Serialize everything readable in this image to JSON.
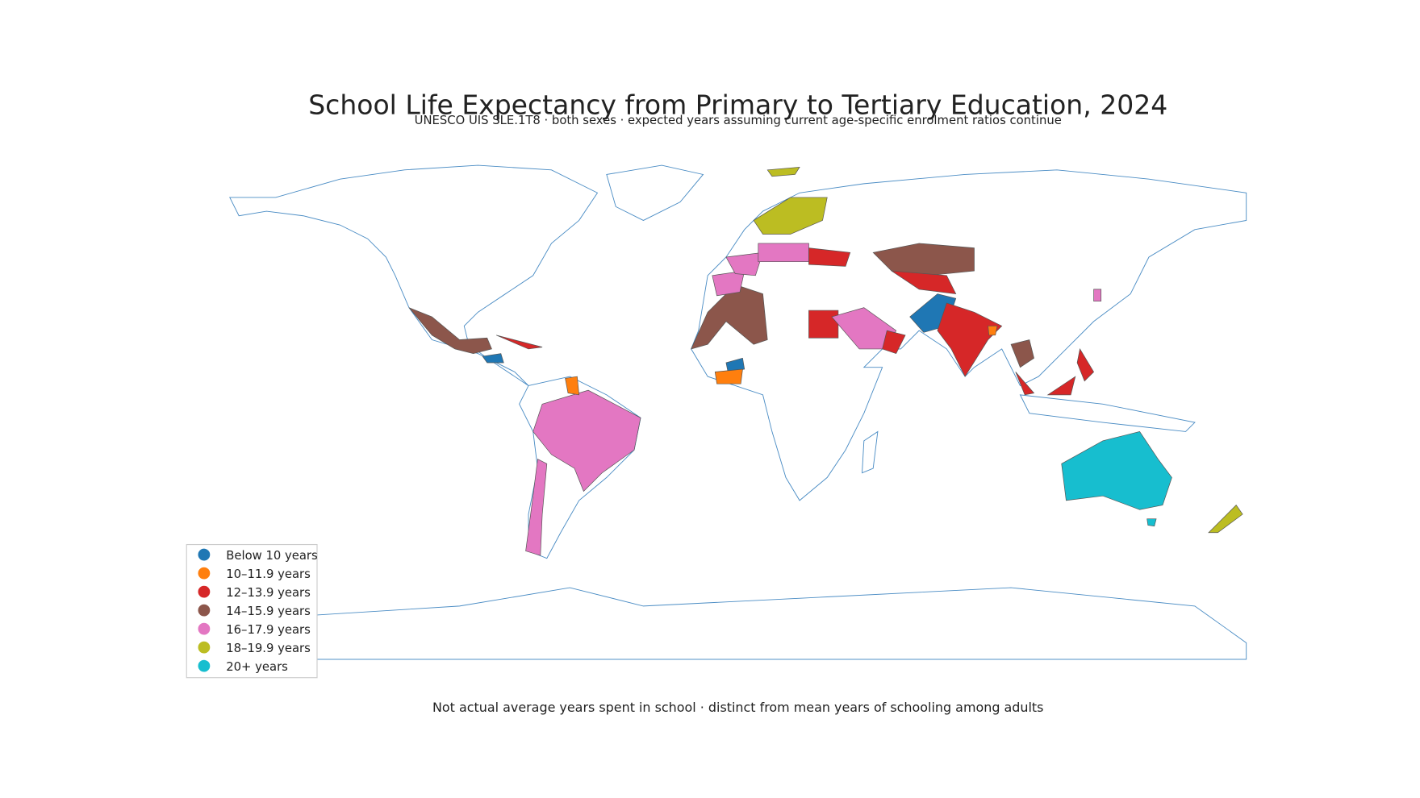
{
  "title": "School Life Expectancy from Primary to Tertiary Education, 2024",
  "subtitle": "UNESCO UIS SLE.1T8 · both sexes · expected years assuming current age-specific enrolment ratios continue",
  "legend": {
    "items": [
      {
        "label": "Below 10 years",
        "color": "#1f77b4"
      },
      {
        "label": "10–11.9 years",
        "color": "#ff7f0e"
      },
      {
        "label": "12–13.9 years",
        "color": "#d62728"
      },
      {
        "label": "14–15.9 years",
        "color": "#8c564b"
      },
      {
        "label": "16–17.9 years",
        "color": "#e377c2"
      },
      {
        "label": "18–19.9 years",
        "color": "#bcbd22"
      },
      {
        "label": "20+ years",
        "color": "#17becf"
      }
    ]
  },
  "footnote": "Not actual average years spent in school · distinct from mean years of schooling among adults"
}
